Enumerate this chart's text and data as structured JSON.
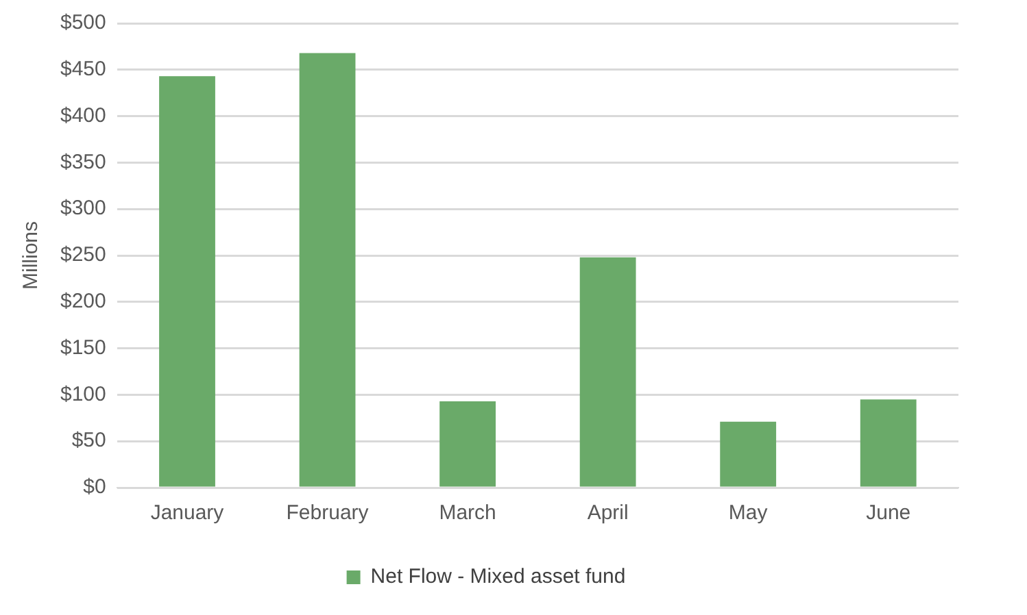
{
  "chart_data": {
    "type": "bar",
    "ylabel": "Millions",
    "categories": [
      "January",
      "February",
      "March",
      "April",
      "May",
      "June"
    ],
    "series": [
      {
        "name": "Net Flow - Mixed asset fund",
        "color": "#6aaa69",
        "values": [
          443,
          468,
          93,
          248,
          71,
          95
        ]
      }
    ],
    "ylim": [
      0,
      500
    ],
    "yticks": [
      {
        "value": 0,
        "label": "$0"
      },
      {
        "value": 50,
        "label": "$50"
      },
      {
        "value": 100,
        "label": "$100"
      },
      {
        "value": 150,
        "label": "$150"
      },
      {
        "value": 200,
        "label": "$200"
      },
      {
        "value": 250,
        "label": "$250"
      },
      {
        "value": 300,
        "label": "$300"
      },
      {
        "value": 350,
        "label": "$350"
      },
      {
        "value": 400,
        "label": "$400"
      },
      {
        "value": 450,
        "label": "$450"
      },
      {
        "value": 500,
        "label": "$500"
      }
    ],
    "grid": "y",
    "legend": "bottom"
  }
}
